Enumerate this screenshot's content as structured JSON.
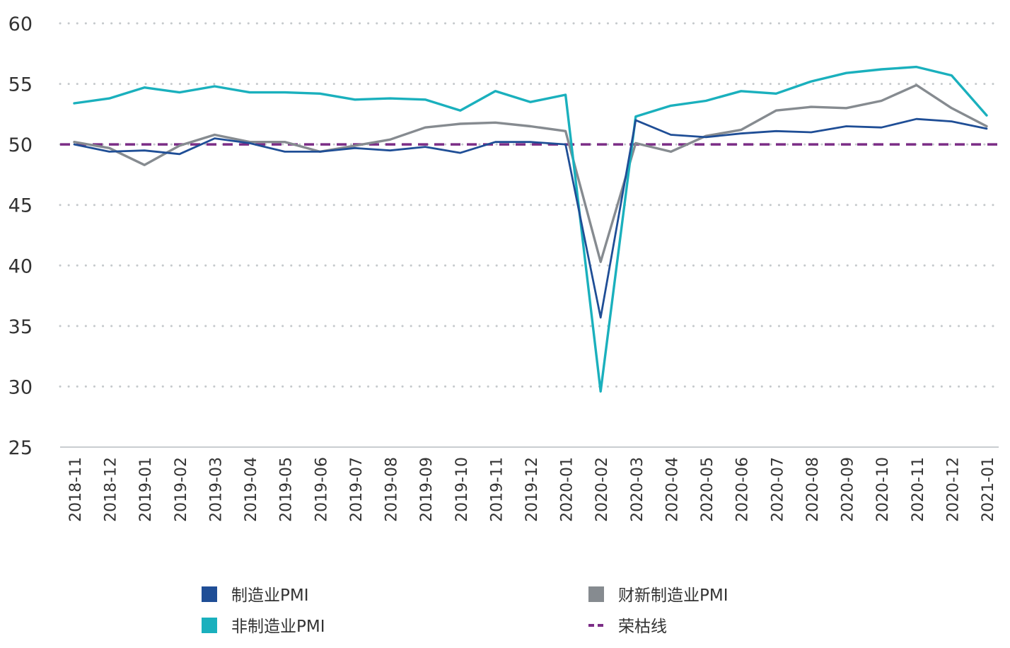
{
  "chart_data": {
    "type": "line",
    "title": "",
    "xlabel": "",
    "ylabel": "",
    "ylim": [
      25,
      60
    ],
    "yticks": [
      25,
      30,
      35,
      40,
      45,
      50,
      55,
      60
    ],
    "grid": "horizontal dotted",
    "legend_position": "bottom",
    "categories": [
      "2018-11",
      "2018-12",
      "2019-01",
      "2019-02",
      "2019-03",
      "2019-04",
      "2019-05",
      "2019-06",
      "2019-07",
      "2019-08",
      "2019-09",
      "2019-10",
      "2019-11",
      "2019-12",
      "2020-01",
      "2020-02",
      "2020-03",
      "2020-04",
      "2020-05",
      "2020-06",
      "2020-07",
      "2020-08",
      "2020-09",
      "2020-10",
      "2020-11",
      "2020-12",
      "2021-01"
    ],
    "series": [
      {
        "name": "制造业PMI",
        "color": "#1f4e96",
        "style": "solid",
        "values": [
          50.0,
          49.4,
          49.5,
          49.2,
          50.5,
          50.1,
          49.4,
          49.4,
          49.7,
          49.5,
          49.8,
          49.3,
          50.2,
          50.2,
          50.0,
          35.7,
          52.0,
          50.8,
          50.6,
          50.9,
          51.1,
          51.0,
          51.5,
          51.4,
          52.1,
          51.9,
          51.3
        ]
      },
      {
        "name": "非制造业PMI",
        "color": "#1ab0bd",
        "style": "solid",
        "values": [
          53.4,
          53.8,
          54.7,
          54.3,
          54.8,
          54.3,
          54.3,
          54.2,
          53.7,
          53.8,
          53.7,
          52.8,
          54.4,
          53.5,
          54.1,
          29.6,
          52.3,
          53.2,
          53.6,
          54.4,
          54.2,
          55.2,
          55.9,
          56.2,
          56.4,
          55.7,
          52.4
        ]
      },
      {
        "name": "财新制造业PMI",
        "color": "#868b90",
        "style": "solid",
        "values": [
          50.2,
          49.7,
          48.3,
          49.9,
          50.8,
          50.2,
          50.2,
          49.4,
          49.9,
          50.4,
          51.4,
          51.7,
          51.8,
          51.5,
          51.1,
          40.3,
          50.1,
          49.4,
          50.7,
          51.2,
          52.8,
          53.1,
          53.0,
          53.6,
          54.9,
          53.0,
          51.5
        ]
      },
      {
        "name": "荣枯线",
        "color": "#7b2d86",
        "style": "dashed",
        "values": [
          50,
          50,
          50,
          50,
          50,
          50,
          50,
          50,
          50,
          50,
          50,
          50,
          50,
          50,
          50,
          50,
          50,
          50,
          50,
          50,
          50,
          50,
          50,
          50,
          50,
          50,
          50
        ]
      }
    ]
  },
  "colors": {
    "grid": "#c5c9cc",
    "axis": "#c9cdd0",
    "tick_text": "#333333",
    "legend_text": "#333333"
  }
}
